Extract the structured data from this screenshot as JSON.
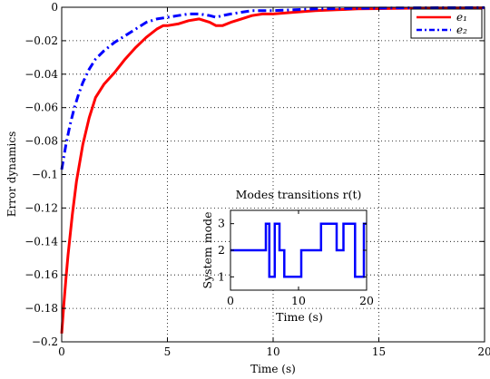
{
  "chart_data": [
    {
      "type": "line",
      "xlabel": "Time (s)",
      "ylabel": "Error dynamics",
      "xlim": [
        0,
        20
      ],
      "ylim": [
        -0.2,
        0
      ],
      "xticks": [
        "0",
        "5",
        "10",
        "15",
        "20"
      ],
      "yticks": [
        "0",
        "−0.02",
        "−0.04",
        "−0.06",
        "−0.08",
        "−0.1",
        "−0.12",
        "−0.14",
        "−0.16",
        "−0.18",
        "−0.2"
      ],
      "grid": true,
      "legend_position": "top-right",
      "series": [
        {
          "name": "e₁",
          "color": "#ff0000",
          "style": "solid",
          "x": [
            0,
            0.1,
            0.2,
            0.3,
            0.5,
            0.7,
            1.0,
            1.3,
            1.6,
            2.0,
            2.5,
            3.0,
            3.5,
            4.0,
            4.5,
            4.8,
            5.0,
            5.5,
            6.0,
            6.5,
            7.0,
            7.3,
            7.6,
            8.0,
            8.5,
            9.0,
            9.5,
            10.0,
            11.0,
            12.0,
            13.0,
            14.0,
            15.0,
            17.0,
            20.0
          ],
          "y": [
            -0.195,
            -0.178,
            -0.162,
            -0.148,
            -0.124,
            -0.104,
            -0.082,
            -0.066,
            -0.054,
            -0.046,
            -0.039,
            -0.031,
            -0.024,
            -0.018,
            -0.013,
            -0.011,
            -0.011,
            -0.01,
            -0.008,
            -0.007,
            -0.009,
            -0.011,
            -0.011,
            -0.009,
            -0.007,
            -0.005,
            -0.004,
            -0.004,
            -0.003,
            -0.002,
            -0.0015,
            -0.001,
            -0.0008,
            -0.0005,
            -0.0003
          ]
        },
        {
          "name": "e₂",
          "color": "#0000ff",
          "style": "dash-dot",
          "x": [
            0,
            0.2,
            0.4,
            0.6,
            0.8,
            1.0,
            1.3,
            1.6,
            2.0,
            2.5,
            3.0,
            3.5,
            4.0,
            4.5,
            5.0,
            5.5,
            6.0,
            6.5,
            7.0,
            7.3,
            7.6,
            8.0,
            8.5,
            9.0,
            10.0,
            11.0,
            12.0,
            13.0,
            14.0,
            15.0,
            17.0,
            20.0
          ],
          "y": [
            -0.097,
            -0.082,
            -0.07,
            -0.06,
            -0.052,
            -0.045,
            -0.037,
            -0.031,
            -0.026,
            -0.021,
            -0.017,
            -0.013,
            -0.009,
            -0.007,
            -0.006,
            -0.005,
            -0.004,
            -0.004,
            -0.005,
            -0.006,
            -0.005,
            -0.004,
            -0.003,
            -0.002,
            -0.002,
            -0.0015,
            -0.001,
            -0.0008,
            -0.0006,
            -0.0005,
            -0.0003,
            -0.0002
          ]
        }
      ]
    },
    {
      "type": "line",
      "title": "Modes transitions r(t)",
      "xlabel": "Time (s)",
      "ylabel": "System mode",
      "xlim": [
        0,
        20
      ],
      "ylim": [
        0.5,
        3.5
      ],
      "xticks": [
        "0",
        "10",
        "20"
      ],
      "yticks": [
        "1",
        "2",
        "3"
      ],
      "series": [
        {
          "color": "#0000ff",
          "style": "step",
          "x": [
            0,
            5.2,
            5.2,
            5.7,
            5.7,
            6.5,
            6.5,
            7.2,
            7.2,
            7.9,
            7.9,
            10.4,
            10.4,
            13.3,
            13.3,
            15.6,
            15.6,
            16.6,
            16.6,
            18.3,
            18.3,
            19.6,
            19.6,
            20
          ],
          "y": [
            2,
            2,
            3,
            3,
            1,
            1,
            3,
            3,
            2,
            2,
            1,
            1,
            2,
            2,
            3,
            3,
            2,
            2,
            3,
            3,
            1,
            1,
            3,
            3
          ]
        }
      ]
    }
  ]
}
